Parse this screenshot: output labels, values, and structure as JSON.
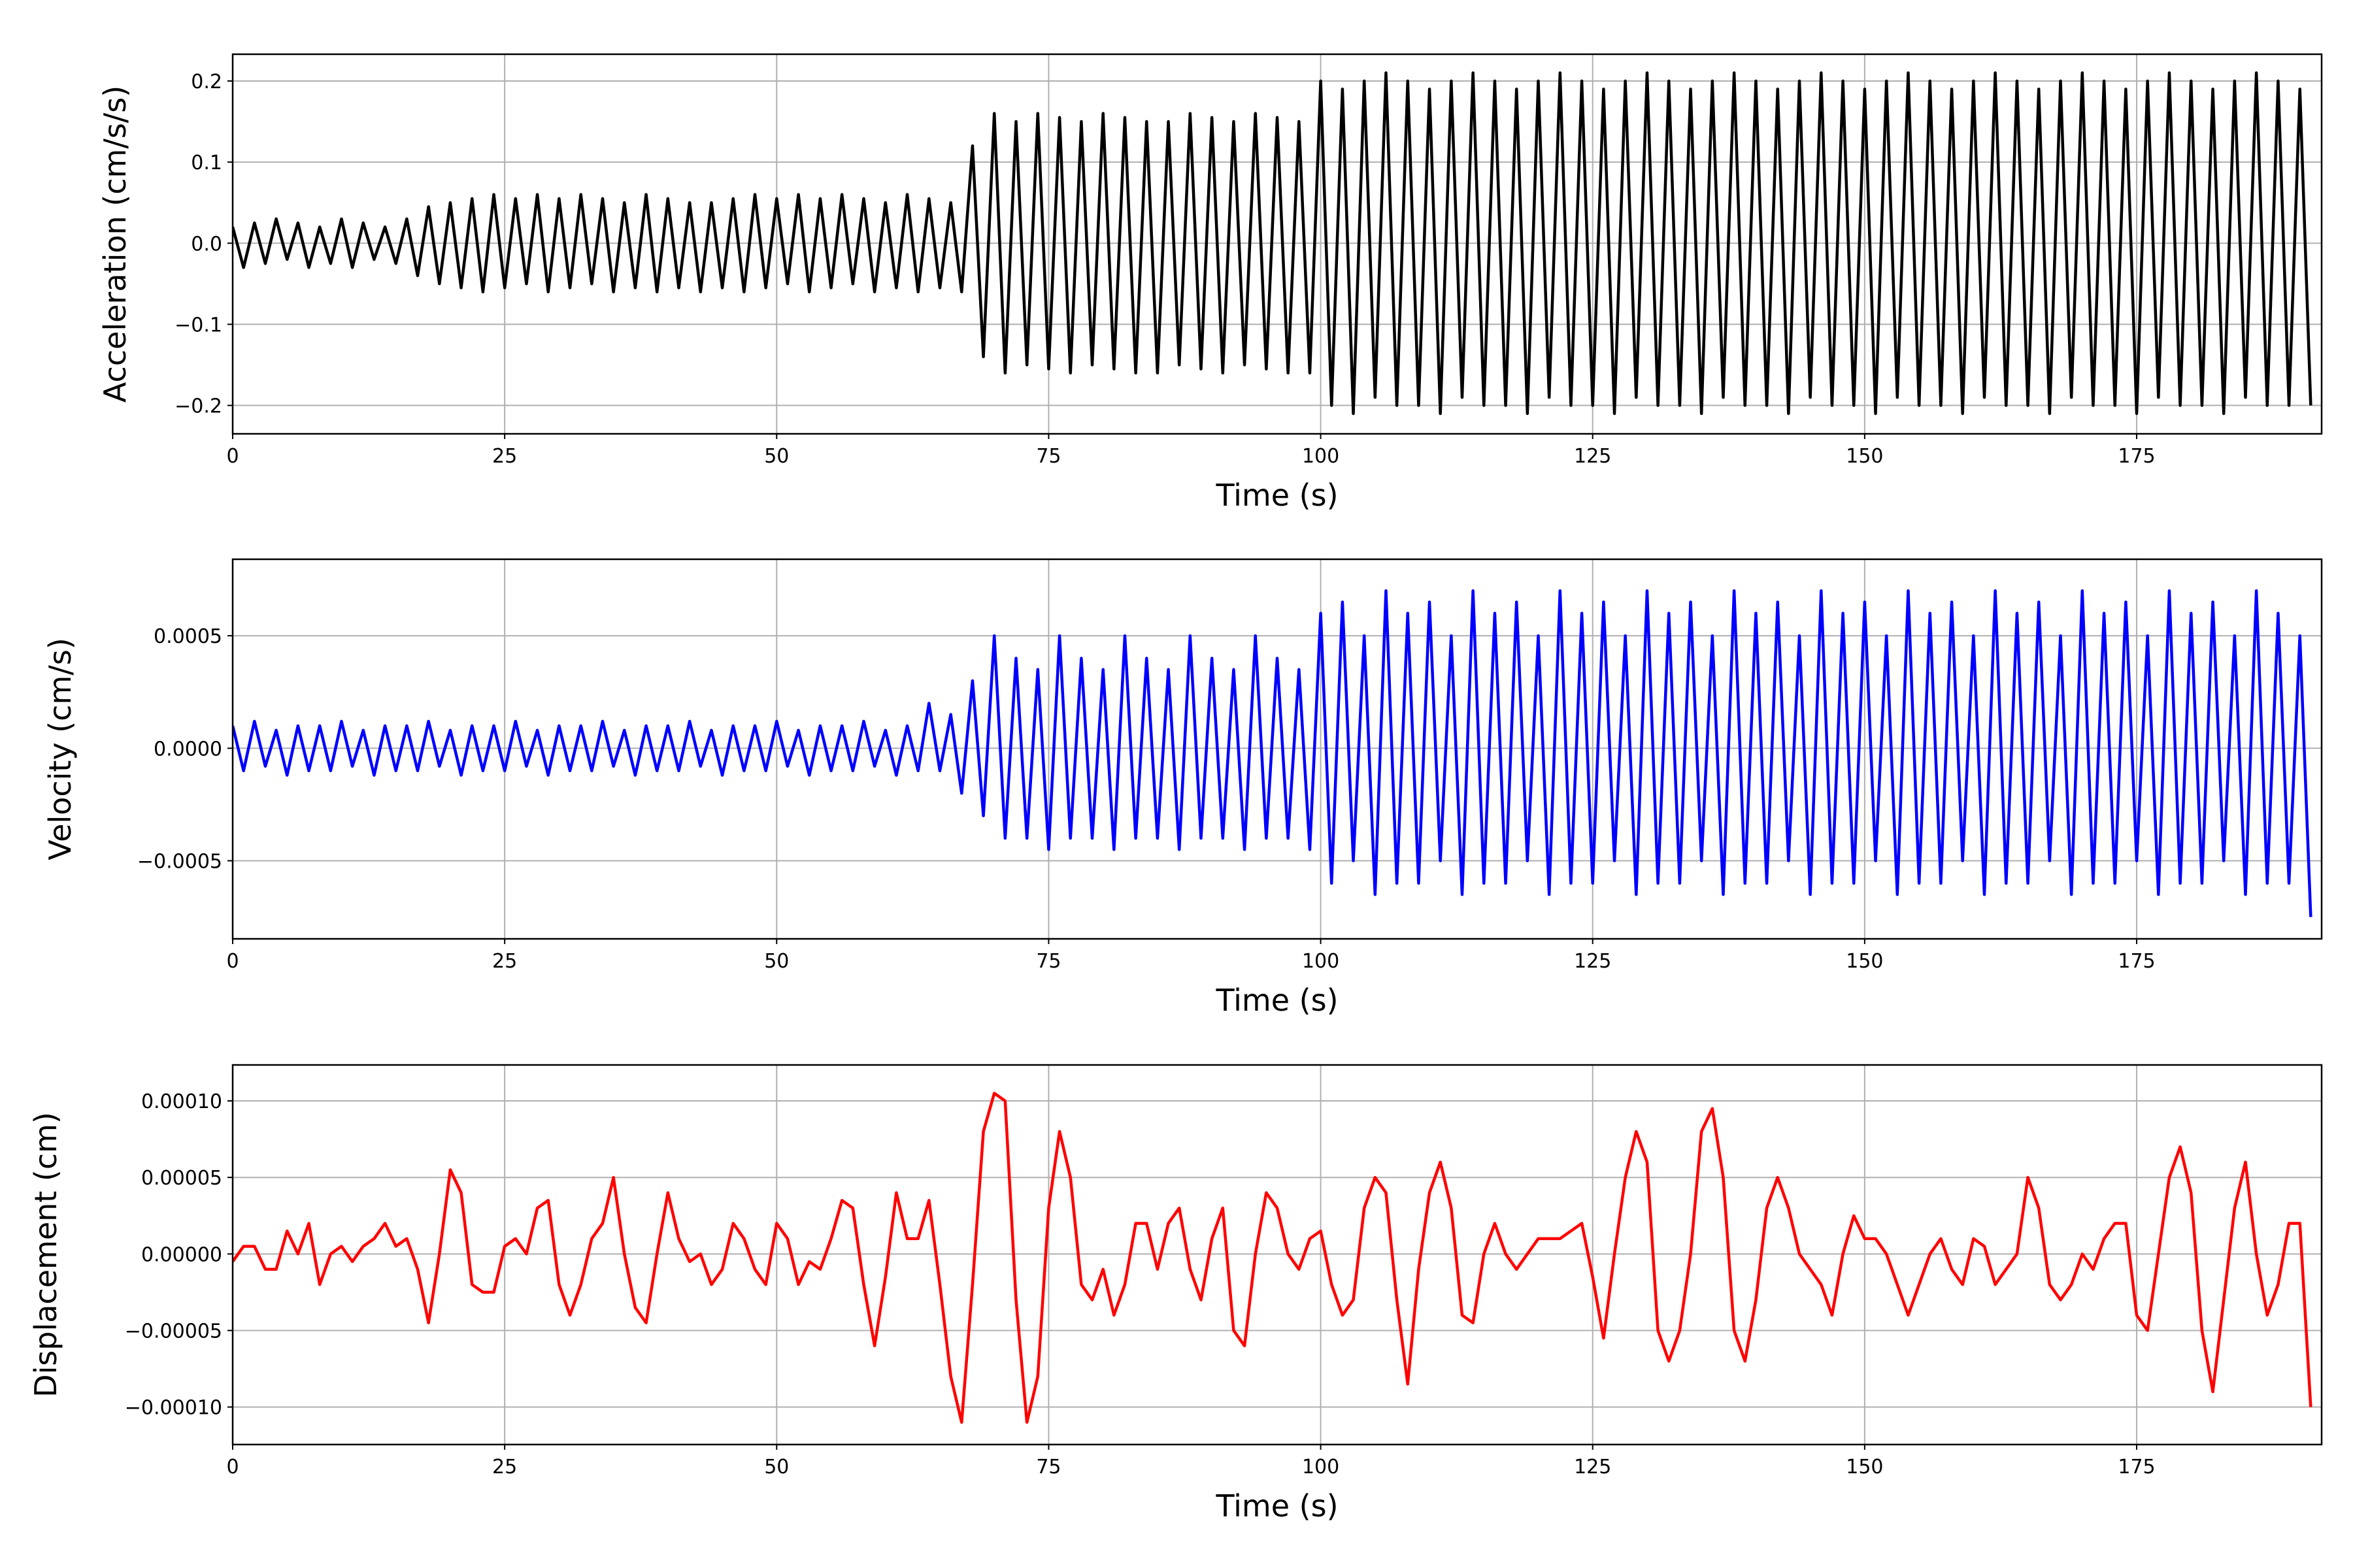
{
  "chart_data": [
    {
      "type": "line",
      "xlabel": "Time (s)",
      "ylabel": "Acceleration (cm/s/s)",
      "color": "#000000",
      "grid": true,
      "xlim": [
        0,
        192
      ],
      "xticks": [
        0,
        25,
        50,
        75,
        100,
        125,
        150,
        175
      ],
      "ylim": [
        -0.235,
        0.233
      ],
      "yticks": [
        {
          "value": -0.2,
          "label": "−0.2"
        },
        {
          "value": -0.1,
          "label": "−0.1"
        },
        {
          "value": 0,
          "label": "0.0"
        },
        {
          "value": 0.1,
          "label": "0.1"
        },
        {
          "value": 0.2,
          "label": "0.2"
        }
      ],
      "x": [
        0,
        1,
        2,
        3,
        4,
        5,
        6,
        7,
        8,
        9,
        10,
        11,
        12,
        13,
        14,
        15,
        16,
        17,
        18,
        19,
        20,
        21,
        22,
        23,
        24,
        25,
        26,
        27,
        28,
        29,
        30,
        31,
        32,
        33,
        34,
        35,
        36,
        37,
        38,
        39,
        40,
        41,
        42,
        43,
        44,
        45,
        46,
        47,
        48,
        49,
        50,
        51,
        52,
        53,
        54,
        55,
        56,
        57,
        58,
        59,
        60,
        61,
        62,
        63,
        64,
        65,
        66,
        67,
        68,
        69,
        70,
        71,
        72,
        73,
        74,
        75,
        76,
        77,
        78,
        79,
        80,
        81,
        82,
        83,
        84,
        85,
        86,
        87,
        88,
        89,
        90,
        91,
        92,
        93,
        94,
        95,
        96,
        97,
        98,
        99,
        100,
        101,
        102,
        103,
        104,
        105,
        106,
        107,
        108,
        109,
        110,
        111,
        112,
        113,
        114,
        115,
        116,
        117,
        118,
        119,
        120,
        121,
        122,
        123,
        124,
        125,
        126,
        127,
        128,
        129,
        130,
        131,
        132,
        133,
        134,
        135,
        136,
        137,
        138,
        139,
        140,
        141,
        142,
        143,
        144,
        145,
        146,
        147,
        148,
        149,
        150,
        151,
        152,
        153,
        154,
        155,
        156,
        157,
        158,
        159,
        160,
        161,
        162,
        163,
        164,
        165,
        166,
        167,
        168,
        169,
        170,
        171,
        172,
        173,
        174,
        175,
        176,
        177,
        178,
        179,
        180,
        181,
        182,
        183,
        184,
        185,
        186,
        187,
        188,
        189,
        190,
        191
      ],
      "values": [
        0.02,
        -0.03,
        0.025,
        -0.025,
        0.03,
        -0.02,
        0.025,
        -0.03,
        0.02,
        -0.025,
        0.03,
        -0.03,
        0.025,
        -0.02,
        0.02,
        -0.025,
        0.03,
        -0.04,
        0.045,
        -0.05,
        0.05,
        -0.055,
        0.055,
        -0.06,
        0.06,
        -0.055,
        0.055,
        -0.05,
        0.06,
        -0.06,
        0.055,
        -0.055,
        0.06,
        -0.05,
        0.055,
        -0.06,
        0.05,
        -0.055,
        0.06,
        -0.06,
        0.055,
        -0.055,
        0.05,
        -0.06,
        0.05,
        -0.055,
        0.055,
        -0.06,
        0.06,
        -0.055,
        0.055,
        -0.05,
        0.06,
        -0.06,
        0.055,
        -0.055,
        0.06,
        -0.05,
        0.055,
        -0.06,
        0.05,
        -0.055,
        0.06,
        -0.06,
        0.055,
        -0.055,
        0.05,
        -0.06,
        0.12,
        -0.14,
        0.16,
        -0.16,
        0.15,
        -0.15,
        0.16,
        -0.155,
        0.155,
        -0.16,
        0.15,
        -0.15,
        0.16,
        -0.155,
        0.155,
        -0.16,
        0.15,
        -0.16,
        0.15,
        -0.15,
        0.16,
        -0.155,
        0.155,
        -0.16,
        0.15,
        -0.15,
        0.16,
        -0.155,
        0.155,
        -0.16,
        0.15,
        -0.16,
        0.2,
        -0.2,
        0.19,
        -0.21,
        0.2,
        -0.19,
        0.21,
        -0.2,
        0.2,
        -0.2,
        0.19,
        -0.21,
        0.2,
        -0.19,
        0.21,
        -0.2,
        0.2,
        -0.2,
        0.19,
        -0.21,
        0.2,
        -0.19,
        0.21,
        -0.2,
        0.2,
        -0.2,
        0.19,
        -0.21,
        0.2,
        -0.19,
        0.21,
        -0.2,
        0.2,
        -0.2,
        0.19,
        -0.21,
        0.2,
        -0.19,
        0.21,
        -0.2,
        0.2,
        -0.2,
        0.19,
        -0.21,
        0.2,
        -0.19,
        0.21,
        -0.2,
        0.2,
        -0.2,
        0.19,
        -0.21,
        0.2,
        -0.19,
        0.21,
        -0.2,
        0.2,
        -0.2,
        0.19,
        -0.21,
        0.2,
        -0.19,
        0.21,
        -0.2,
        0.2,
        -0.2,
        0.19,
        -0.21,
        0.2,
        -0.19,
        0.21,
        -0.2,
        0.2,
        -0.2,
        0.19,
        -0.21,
        0.2,
        -0.19,
        0.21,
        -0.2,
        0.2,
        -0.2,
        0.19,
        -0.21,
        0.2,
        -0.19,
        0.21,
        -0.2,
        0.2,
        -0.2,
        0.19,
        -0.2
      ]
    },
    {
      "type": "line",
      "xlabel": "Time (s)",
      "ylabel": "Velocity (cm/s)",
      "color": "#0000ff",
      "grid": true,
      "xlim": [
        0,
        192
      ],
      "xticks": [
        0,
        25,
        50,
        75,
        100,
        125,
        150,
        175
      ],
      "ylim": [
        -0.000847,
        0.00084
      ],
      "yticks": [
        {
          "value": -0.0005,
          "label": "−0.0005"
        },
        {
          "value": 0,
          "label": "0.0000"
        },
        {
          "value": 0.0005,
          "label": "0.0005"
        }
      ],
      "x": [
        0,
        1,
        2,
        3,
        4,
        5,
        6,
        7,
        8,
        9,
        10,
        11,
        12,
        13,
        14,
        15,
        16,
        17,
        18,
        19,
        20,
        21,
        22,
        23,
        24,
        25,
        26,
        27,
        28,
        29,
        30,
        31,
        32,
        33,
        34,
        35,
        36,
        37,
        38,
        39,
        40,
        41,
        42,
        43,
        44,
        45,
        46,
        47,
        48,
        49,
        50,
        51,
        52,
        53,
        54,
        55,
        56,
        57,
        58,
        59,
        60,
        61,
        62,
        63,
        64,
        65,
        66,
        67,
        68,
        69,
        70,
        71,
        72,
        73,
        74,
        75,
        76,
        77,
        78,
        79,
        80,
        81,
        82,
        83,
        84,
        85,
        86,
        87,
        88,
        89,
        90,
        91,
        92,
        93,
        94,
        95,
        96,
        97,
        98,
        99,
        100,
        101,
        102,
        103,
        104,
        105,
        106,
        107,
        108,
        109,
        110,
        111,
        112,
        113,
        114,
        115,
        116,
        117,
        118,
        119,
        120,
        121,
        122,
        123,
        124,
        125,
        126,
        127,
        128,
        129,
        130,
        131,
        132,
        133,
        134,
        135,
        136,
        137,
        138,
        139,
        140,
        141,
        142,
        143,
        144,
        145,
        146,
        147,
        148,
        149,
        150,
        151,
        152,
        153,
        154,
        155,
        156,
        157,
        158,
        159,
        160,
        161,
        162,
        163,
        164,
        165,
        166,
        167,
        168,
        169,
        170,
        171,
        172,
        173,
        174,
        175,
        176,
        177,
        178,
        179,
        180,
        181,
        182,
        183,
        184,
        185,
        186,
        187,
        188,
        189,
        190,
        191
      ],
      "values": [
        0.0001,
        -0.0001,
        0.00012,
        -8e-05,
        8e-05,
        -0.00012,
        0.0001,
        -0.0001,
        0.0001,
        -0.0001,
        0.00012,
        -8e-05,
        8e-05,
        -0.00012,
        0.0001,
        -0.0001,
        0.0001,
        -0.0001,
        0.00012,
        -8e-05,
        8e-05,
        -0.00012,
        0.0001,
        -0.0001,
        0.0001,
        -0.0001,
        0.00012,
        -8e-05,
        8e-05,
        -0.00012,
        0.0001,
        -0.0001,
        0.0001,
        -0.0001,
        0.00012,
        -8e-05,
        8e-05,
        -0.00012,
        0.0001,
        -0.0001,
        0.0001,
        -0.0001,
        0.00012,
        -8e-05,
        8e-05,
        -0.00012,
        0.0001,
        -0.0001,
        0.0001,
        -0.0001,
        0.00012,
        -8e-05,
        8e-05,
        -0.00012,
        0.0001,
        -0.0001,
        0.0001,
        -0.0001,
        0.00012,
        -8e-05,
        8e-05,
        -0.00012,
        0.0001,
        -0.0001,
        0.0002,
        -0.0001,
        0.00015,
        -0.0002,
        0.0003,
        -0.0003,
        0.0005,
        -0.0004,
        0.0004,
        -0.0004,
        0.00035,
        -0.00045,
        0.0005,
        -0.0004,
        0.0004,
        -0.0004,
        0.00035,
        -0.00045,
        0.0005,
        -0.0004,
        0.0004,
        -0.0004,
        0.00035,
        -0.00045,
        0.0005,
        -0.0004,
        0.0004,
        -0.0004,
        0.00035,
        -0.00045,
        0.0005,
        -0.0004,
        0.0004,
        -0.0004,
        0.00035,
        -0.00045,
        0.0006,
        -0.0006,
        0.00065,
        -0.0005,
        0.0005,
        -0.00065,
        0.0007,
        -0.0006,
        0.0006,
        -0.0006,
        0.00065,
        -0.0005,
        0.0005,
        -0.00065,
        0.0007,
        -0.0006,
        0.0006,
        -0.0006,
        0.00065,
        -0.0005,
        0.0005,
        -0.00065,
        0.0007,
        -0.0006,
        0.0006,
        -0.0006,
        0.00065,
        -0.0005,
        0.0005,
        -0.00065,
        0.0007,
        -0.0006,
        0.0006,
        -0.0006,
        0.00065,
        -0.0005,
        0.0005,
        -0.00065,
        0.0007,
        -0.0006,
        0.0006,
        -0.0006,
        0.00065,
        -0.0005,
        0.0005,
        -0.00065,
        0.0007,
        -0.0006,
        0.0006,
        -0.0006,
        0.00065,
        -0.0005,
        0.0005,
        -0.00065,
        0.0007,
        -0.0006,
        0.0006,
        -0.0006,
        0.00065,
        -0.0005,
        0.0005,
        -0.00065,
        0.0007,
        -0.0006,
        0.0006,
        -0.0006,
        0.00065,
        -0.0005,
        0.0005,
        -0.00065,
        0.0007,
        -0.0006,
        0.0006,
        -0.0006,
        0.00065,
        -0.0005,
        0.0005,
        -0.00065,
        0.0007,
        -0.0006,
        0.0006,
        -0.0006,
        0.00065,
        -0.0005,
        0.0005,
        -0.00065,
        0.0007,
        -0.0006,
        0.0006,
        -0.0006,
        0.0005,
        -0.00075
      ]
    },
    {
      "type": "line",
      "xlabel": "Time (s)",
      "ylabel": "Displacement (cm)",
      "color": "#ff0000",
      "grid": true,
      "xlim": [
        0,
        192
      ],
      "xticks": [
        0,
        25,
        50,
        75,
        100,
        125,
        150,
        175
      ],
      "ylim": [
        -0.0001245,
        0.0001235
      ],
      "yticks": [
        {
          "value": -0.0001,
          "label": "−0.00010"
        },
        {
          "value": -5e-05,
          "label": "−0.00005"
        },
        {
          "value": 0,
          "label": "0.00000"
        },
        {
          "value": 5e-05,
          "label": "0.00005"
        },
        {
          "value": 0.0001,
          "label": "0.00010"
        }
      ],
      "x": [
        0,
        1,
        2,
        3,
        4,
        5,
        6,
        7,
        8,
        9,
        10,
        11,
        12,
        13,
        14,
        15,
        16,
        17,
        18,
        19,
        20,
        21,
        22,
        23,
        24,
        25,
        26,
        27,
        28,
        29,
        30,
        31,
        32,
        33,
        34,
        35,
        36,
        37,
        38,
        39,
        40,
        41,
        42,
        43,
        44,
        45,
        46,
        47,
        48,
        49,
        50,
        51,
        52,
        53,
        54,
        55,
        56,
        57,
        58,
        59,
        60,
        61,
        62,
        63,
        64,
        65,
        66,
        67,
        68,
        69,
        70,
        71,
        72,
        73,
        74,
        75,
        76,
        77,
        78,
        79,
        80,
        81,
        82,
        83,
        84,
        85,
        86,
        87,
        88,
        89,
        90,
        91,
        92,
        93,
        94,
        95,
        96,
        97,
        98,
        99,
        100,
        101,
        102,
        103,
        104,
        105,
        106,
        107,
        108,
        109,
        110,
        111,
        112,
        113,
        114,
        115,
        116,
        117,
        118,
        119,
        120,
        121,
        122,
        123,
        124,
        125,
        126,
        127,
        128,
        129,
        130,
        131,
        132,
        133,
        134,
        135,
        136,
        137,
        138,
        139,
        140,
        141,
        142,
        143,
        144,
        145,
        146,
        147,
        148,
        149,
        150,
        151,
        152,
        153,
        154,
        155,
        156,
        157,
        158,
        159,
        160,
        161,
        162,
        163,
        164,
        165,
        166,
        167,
        168,
        169,
        170,
        171,
        172,
        173,
        174,
        175,
        176,
        177,
        178,
        179,
        180,
        181,
        182,
        183,
        184,
        185,
        186,
        187,
        188,
        189,
        190,
        191
      ],
      "values": [
        -5e-06,
        5e-06,
        5e-06,
        -1e-05,
        -1e-05,
        1.5e-05,
        0,
        2e-05,
        -2e-05,
        0,
        5e-06,
        -5e-06,
        5e-06,
        1e-05,
        2e-05,
        5e-06,
        1e-05,
        -1e-05,
        -4.5e-05,
        0,
        5.5e-05,
        4e-05,
        -2e-05,
        -2.5e-05,
        -2.5e-05,
        5e-06,
        1e-05,
        0,
        3e-05,
        3.5e-05,
        -2e-05,
        -4e-05,
        -2e-05,
        1e-05,
        2e-05,
        5e-05,
        0,
        -3.5e-05,
        -4.5e-05,
        0,
        4e-05,
        1e-05,
        -5e-06,
        0,
        -2e-05,
        -1e-05,
        2e-05,
        1e-05,
        -1e-05,
        -2e-05,
        2e-05,
        1e-05,
        -2e-05,
        -5e-06,
        -1e-05,
        1e-05,
        3.5e-05,
        3e-05,
        -2e-05,
        -6e-05,
        -1.5e-05,
        4e-05,
        1e-05,
        1e-05,
        3.5e-05,
        -2e-05,
        -8e-05,
        -0.00011,
        -2e-05,
        8e-05,
        0.000105,
        0.0001,
        -3e-05,
        -0.00011,
        -8e-05,
        3e-05,
        8e-05,
        5e-05,
        -2e-05,
        -3e-05,
        -1e-05,
        -4e-05,
        -2e-05,
        2e-05,
        2e-05,
        -1e-05,
        2e-05,
        3e-05,
        -1e-05,
        -3e-05,
        1e-05,
        3e-05,
        -5e-05,
        -6e-05,
        0,
        4e-05,
        3e-05,
        0,
        -1e-05,
        1e-05,
        1.5e-05,
        -2e-05,
        -4e-05,
        -3e-05,
        3e-05,
        5e-05,
        4e-05,
        -3e-05,
        -8.5e-05,
        -1e-05,
        4e-05,
        6e-05,
        3e-05,
        -4e-05,
        -4.5e-05,
        0,
        2e-05,
        0,
        -1e-05,
        0,
        1e-05,
        1e-05,
        1e-05,
        1.5e-05,
        2e-05,
        -1.5e-05,
        -5.5e-05,
        0,
        5e-05,
        8e-05,
        6e-05,
        -5e-05,
        -7e-05,
        -5e-05,
        0,
        8e-05,
        9.5e-05,
        5e-05,
        -5e-05,
        -7e-05,
        -3e-05,
        3e-05,
        5e-05,
        3e-05,
        0,
        -1e-05,
        -2e-05,
        -4e-05,
        0,
        2.5e-05,
        1e-05,
        1e-05,
        0,
        -2e-05,
        -4e-05,
        -2e-05,
        0,
        1e-05,
        -1e-05,
        -2e-05,
        1e-05,
        5e-06,
        -2e-05,
        -1e-05,
        0,
        5e-05,
        3e-05,
        -2e-05,
        -3e-05,
        -2e-05,
        0,
        -1e-05,
        1e-05,
        2e-05,
        2e-05,
        -4e-05,
        -5e-05,
        0,
        5e-05,
        7e-05,
        4e-05,
        -5e-05,
        -9e-05,
        -3e-05,
        3e-05,
        6e-05,
        0,
        -4e-05,
        -2e-05,
        2e-05,
        2e-05,
        -0.0001
      ]
    }
  ]
}
